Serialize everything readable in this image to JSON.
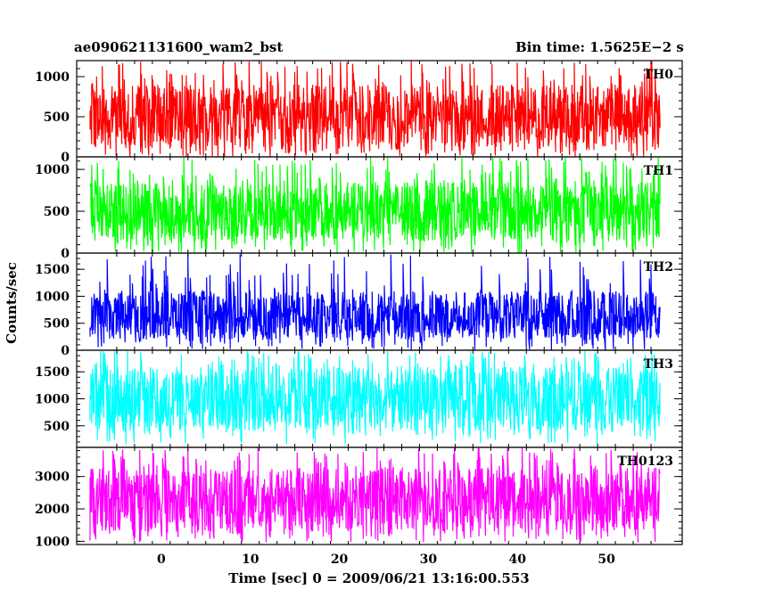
{
  "header": {
    "title": "ae090621131600_wam2_bst",
    "bin_time": "Bin time: 1.5625E−2 s"
  },
  "chart_data": {
    "type": "line",
    "xlabel": "Time [sec] 0 = 2009/06/21 13:16:00.553",
    "ylabel": "Counts/sec",
    "xlim": [
      -9.5,
      58.5
    ],
    "x_ticks": [
      "0",
      "10",
      "20",
      "30",
      "40",
      "50"
    ],
    "x_tick_values": [
      0,
      10,
      20,
      30,
      40,
      50
    ],
    "x_data_range": [
      -8.0,
      56.0
    ],
    "grid": false,
    "panels": [
      {
        "name": "TH0",
        "color": "#ff0000",
        "ylim": [
          0,
          1200
        ],
        "y_ticks": [
          "0",
          "500",
          "1000"
        ],
        "y_tick_values": [
          0,
          500,
          1000
        ],
        "typical_range": [
          100,
          900
        ],
        "peak_range": [
          0,
          1200
        ]
      },
      {
        "name": "TH1",
        "color": "#00ff00",
        "ylim": [
          0,
          1150
        ],
        "y_ticks": [
          "0",
          "500",
          "1000"
        ],
        "y_tick_values": [
          0,
          500,
          1000
        ],
        "typical_range": [
          150,
          850
        ],
        "peak_range": [
          0,
          1150
        ]
      },
      {
        "name": "TH2",
        "color": "#0000ff",
        "ylim": [
          0,
          1800
        ],
        "y_ticks": [
          "0",
          "500",
          "1000",
          "1500"
        ],
        "y_tick_values": [
          0,
          500,
          1000,
          1500
        ],
        "typical_range": [
          200,
          1100
        ],
        "peak_range": [
          0,
          1800
        ]
      },
      {
        "name": "TH3",
        "color": "#00ffff",
        "ylim": [
          100,
          1900
        ],
        "y_ticks": [
          "500",
          "1000",
          "1500"
        ],
        "y_tick_values": [
          500,
          1000,
          1500
        ],
        "typical_range": [
          400,
          1600
        ],
        "peak_range": [
          150,
          1900
        ]
      },
      {
        "name": "TH0123",
        "color": "#ff00ff",
        "ylim": [
          900,
          3900
        ],
        "y_ticks": [
          "1000",
          "2000",
          "3000"
        ],
        "y_tick_values": [
          1000,
          2000,
          3000
        ],
        "typical_range": [
          1300,
          3300
        ],
        "peak_range": [
          950,
          3900
        ]
      }
    ]
  }
}
